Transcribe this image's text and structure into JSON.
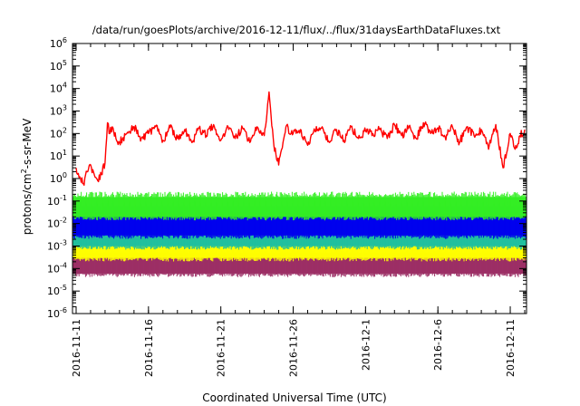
{
  "chart_data": {
    "type": "line",
    "title": "/data/run/goesPlots/archive/2016-12-11/flux/../flux/31daysEarthDataFluxes.txt",
    "xlabel": "Coordinated Universal Time (UTC)",
    "ylabel": "protons/cm2-s-sr-MeV",
    "ylabel_parts": [
      "protons/cm",
      "2",
      "-s-sr-MeV"
    ],
    "y_scale": "log",
    "ylim": [
      1e-06,
      1000000.0
    ],
    "y_ticks": [
      {
        "exp": "-6"
      },
      {
        "exp": "-5"
      },
      {
        "exp": "-4"
      },
      {
        "exp": "-3"
      },
      {
        "exp": "-2"
      },
      {
        "exp": "-1"
      },
      {
        "exp": "0"
      },
      {
        "exp": "1"
      },
      {
        "exp": "2"
      },
      {
        "exp": "3"
      },
      {
        "exp": "4"
      },
      {
        "exp": "5"
      },
      {
        "exp": "6"
      }
    ],
    "y_tick_base": "10",
    "xlim": [
      "2016-11-10T18:00",
      "2016-12-12T03:00"
    ],
    "x_ticks": [
      {
        "date": "2016-11-11",
        "label": "2016-11-11"
      },
      {
        "date": "2016-11-16",
        "label": "2016-11-16"
      },
      {
        "date": "2016-11-21",
        "label": "2016-11-21"
      },
      {
        "date": "2016-11-26",
        "label": "2016-11-26"
      },
      {
        "date": "2016-12-01",
        "label": "2016-12-1"
      },
      {
        "date": "2016-12-06",
        "label": "2016-12-6"
      },
      {
        "date": "2016-12-11",
        "label": "2016-12-11"
      }
    ],
    "legend": "none",
    "series": [
      {
        "color": "#9b2d64",
        "band": [
          6e-05,
          0.0005
        ],
        "dates": [
          "2016-11-11",
          "2016-11-16",
          "2016-11-21",
          "2016-11-26",
          "2016-12-01",
          "2016-12-06",
          "2016-12-11"
        ],
        "values": [
          0.0002,
          0.0002,
          0.0002,
          0.0002,
          0.0002,
          0.0002,
          0.0002
        ]
      },
      {
        "color": "#ffff00",
        "band": [
          0.0003,
          0.002
        ],
        "dates": [
          "2016-11-11",
          "2016-11-16",
          "2016-11-21",
          "2016-11-26",
          "2016-12-01",
          "2016-12-06",
          "2016-12-11"
        ],
        "values": [
          0.001,
          0.001,
          0.001,
          0.001,
          0.001,
          0.001,
          0.001
        ]
      },
      {
        "color": "#1fbf9f",
        "band": [
          0.001,
          0.008
        ],
        "dates": [
          "2016-11-11",
          "2016-11-16",
          "2016-11-21",
          "2016-11-26",
          "2016-12-01",
          "2016-12-06",
          "2016-12-11"
        ],
        "values": [
          0.003,
          0.003,
          0.003,
          0.003,
          0.003,
          0.003,
          0.003
        ]
      },
      {
        "color": "#2a6ee8",
        "band": [
          0.004,
          0.06
        ],
        "dates": [
          "2016-11-11",
          "2016-11-16",
          "2016-11-21",
          "2016-11-26",
          "2016-12-01",
          "2016-12-06",
          "2016-12-11"
        ],
        "values": [
          0.015,
          0.015,
          0.015,
          0.015,
          0.015,
          0.015,
          0.015
        ]
      },
      {
        "color": "#0000ee",
        "band": [
          0.003,
          0.02
        ],
        "dates": [
          "2016-11-11",
          "2016-11-16",
          "2016-11-21",
          "2016-11-26",
          "2016-12-01",
          "2016-12-06",
          "2016-12-11"
        ],
        "values": [
          0.008,
          0.008,
          0.008,
          0.008,
          0.008,
          0.008,
          0.008
        ]
      },
      {
        "color": "#33ee22",
        "band": [
          0.02,
          0.15
        ],
        "dates": [
          "2016-11-11",
          "2016-11-16",
          "2016-11-21",
          "2016-11-26",
          "2016-12-01",
          "2016-12-06",
          "2016-12-11"
        ],
        "values": [
          0.06,
          0.06,
          0.06,
          0.06,
          0.06,
          0.06,
          0.06
        ]
      },
      {
        "color": "#ff0000",
        "dates": [
          "2016-11-11T00:00",
          "2016-11-11T06:00",
          "2016-11-11T12:00",
          "2016-11-11T18:00",
          "2016-11-12T00:00",
          "2016-11-12T06:00",
          "2016-11-12T12:00",
          "2016-11-12T18:00",
          "2016-11-13T00:00",
          "2016-11-13T04:00",
          "2016-11-13T08:00",
          "2016-11-13T12:00",
          "2016-11-13T18:00",
          "2016-11-14T00:00",
          "2016-11-14T12:00",
          "2016-11-15T00:00",
          "2016-11-15T12:00",
          "2016-11-16T00:00",
          "2016-11-16T12:00",
          "2016-11-17T00:00",
          "2016-11-17T12:00",
          "2016-11-18T00:00",
          "2016-11-18T12:00",
          "2016-11-19T00:00",
          "2016-11-19T12:00",
          "2016-11-20T00:00",
          "2016-11-20T12:00",
          "2016-11-21T00:00",
          "2016-11-21T12:00",
          "2016-11-22T00:00",
          "2016-11-22T12:00",
          "2016-11-23T00:00",
          "2016-11-23T12:00",
          "2016-11-24T00:00",
          "2016-11-24T08:00",
          "2016-11-24T16:00",
          "2016-11-25T00:00",
          "2016-11-25T12:00",
          "2016-11-26T00:00",
          "2016-11-26T12:00",
          "2016-11-27T00:00",
          "2016-11-27T12:00",
          "2016-11-28T00:00",
          "2016-11-28T12:00",
          "2016-11-29T00:00",
          "2016-11-29T12:00",
          "2016-11-30T00:00",
          "2016-11-30T12:00",
          "2016-12-01T00:00",
          "2016-12-01T12:00",
          "2016-12-02T00:00",
          "2016-12-02T12:00",
          "2016-12-03T00:00",
          "2016-12-03T12:00",
          "2016-12-04T00:00",
          "2016-12-04T12:00",
          "2016-12-05T00:00",
          "2016-12-05T12:00",
          "2016-12-06T00:00",
          "2016-12-06T12:00",
          "2016-12-07T00:00",
          "2016-12-07T12:00",
          "2016-12-08T00:00",
          "2016-12-08T12:00",
          "2016-12-09T00:00",
          "2016-12-09T12:00",
          "2016-12-10T00:00",
          "2016-12-10T12:00",
          "2016-12-11T00:00",
          "2016-12-11T08:00",
          "2016-12-11T16:00",
          "2016-12-12T00:00"
        ],
        "values": [
          3,
          1.2,
          0.6,
          2,
          4,
          1.5,
          0.8,
          1.5,
          5,
          300,
          100,
          200,
          60,
          40,
          100,
          200,
          60,
          100,
          200,
          50,
          180,
          60,
          150,
          40,
          170,
          80,
          250,
          50,
          200,
          60,
          180,
          40,
          200,
          80,
          7000,
          30,
          4,
          200,
          100,
          150,
          30,
          130,
          200,
          40,
          150,
          50,
          200,
          60,
          130,
          100,
          150,
          60,
          250,
          80,
          200,
          60,
          300,
          100,
          180,
          70,
          200,
          40,
          200,
          80,
          150,
          20,
          250,
          3,
          100,
          20,
          80,
          150
        ]
      }
    ]
  }
}
